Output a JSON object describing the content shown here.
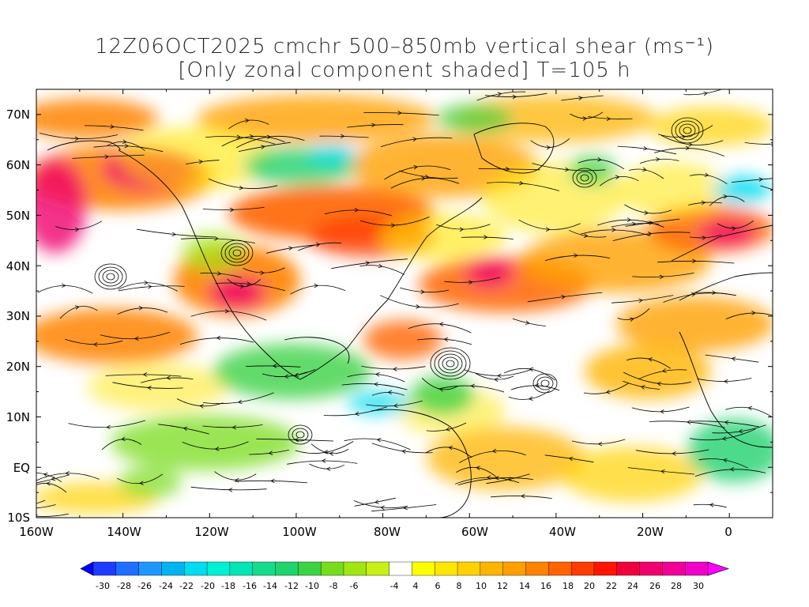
{
  "title_line1": "12Z06OCT2025 cmchr 500–850mb vertical shear (ms⁻¹)",
  "title_line2": "[Only zonal component shaded] T=105 h",
  "lat_labels": [
    "70N",
    "60N",
    "50N",
    "40N",
    "30N",
    "20N",
    "10N",
    "EQ",
    "10S"
  ],
  "lon_labels": [
    "160W",
    "140W",
    "120W",
    "100W",
    "80W",
    "60W",
    "40W",
    "20W",
    "0"
  ],
  "colorbar": {
    "labels": [
      "-30",
      "-28",
      "-26",
      "-24",
      "-22",
      "-20",
      "-18",
      "-16",
      "-14",
      "-12",
      "-10",
      "-8",
      "-6",
      "-4",
      "4",
      "6",
      "8",
      "10",
      "12",
      "14",
      "16",
      "18",
      "20",
      "22",
      "24",
      "26",
      "28",
      "30"
    ],
    "colors": [
      "#0000ff",
      "#1e3cff",
      "#1e6eff",
      "#1e96ff",
      "#00b4f0",
      "#00dcf0",
      "#00f0d2",
      "#00e6b4",
      "#14dc8c",
      "#1ed26e",
      "#3cd246",
      "#78dc1e",
      "#a0e614",
      "#c8f014",
      "#ffffff",
      "#ffff00",
      "#ffe600",
      "#ffd200",
      "#ffb400",
      "#ffa000",
      "#ff8200",
      "#ff6400",
      "#ff3c00",
      "#ff1400",
      "#f0003c",
      "#f0006e",
      "#f00096",
      "#f000c8",
      "#ff00ff"
    ]
  },
  "colors": {
    "frame": "#000000",
    "streamline": "#000000"
  }
}
